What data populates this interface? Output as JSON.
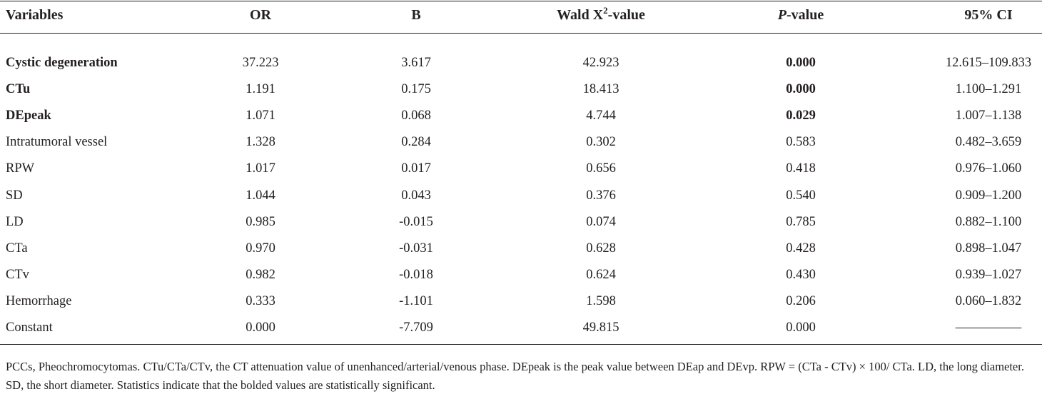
{
  "table": {
    "header": [
      [
        {
          "text": "Variables"
        }
      ],
      [
        {
          "text": "OR"
        }
      ],
      [
        {
          "text": "B"
        }
      ],
      [
        {
          "text": "Wald X"
        },
        {
          "text": "2",
          "sup": true
        },
        {
          "text": "-value"
        }
      ],
      [
        {
          "text": "P",
          "italic": true
        },
        {
          "text": "-value"
        }
      ],
      [
        {
          "text": "95% CI"
        }
      ]
    ],
    "bold_columns": [
      0,
      4
    ],
    "rows": [
      {
        "bold": true,
        "cells": [
          "Cystic degeneration",
          "37.223",
          "3.617",
          "42.923",
          "0.000",
          "12.615–109.833"
        ]
      },
      {
        "bold": true,
        "cells": [
          "CTu",
          "1.191",
          "0.175",
          "18.413",
          "0.000",
          "1.100–1.291"
        ]
      },
      {
        "bold": true,
        "cells": [
          "DEpeak",
          "1.071",
          "0.068",
          "4.744",
          "0.029",
          "1.007–1.138"
        ]
      },
      {
        "bold": false,
        "cells": [
          "Intratumoral vessel",
          "1.328",
          "0.284",
          "0.302",
          "0.583",
          "0.482–3.659"
        ]
      },
      {
        "bold": false,
        "cells": [
          "RPW",
          "1.017",
          "0.017",
          "0.656",
          "0.418",
          "0.976–1.060"
        ]
      },
      {
        "bold": false,
        "cells": [
          "SD",
          "1.044",
          "0.043",
          "0.376",
          "0.540",
          "0.909–1.200"
        ]
      },
      {
        "bold": false,
        "cells": [
          "LD",
          "0.985",
          "-0.015",
          "0.074",
          "0.785",
          "0.882–1.100"
        ]
      },
      {
        "bold": false,
        "cells": [
          "CTa",
          "0.970",
          "-0.031",
          "0.628",
          "0.428",
          "0.898–1.047"
        ]
      },
      {
        "bold": false,
        "cells": [
          "CTv",
          "0.982",
          "-0.018",
          "0.624",
          "0.430",
          "0.939–1.027"
        ]
      },
      {
        "bold": false,
        "cells": [
          "Hemorrhage",
          "0.333",
          "-1.101",
          "1.598",
          "0.206",
          "0.060–1.832"
        ]
      },
      {
        "bold": false,
        "cells": [
          "Constant",
          "0.000",
          "-7.709",
          "49.815",
          "0.000",
          "—————"
        ]
      }
    ]
  },
  "footnote": "PCCs, Pheochromocytomas. CTu/CTa/CTv, the CT attenuation value of unenhanced/arterial/venous phase. DEpeak is the peak value between DEap and DEvp. RPW = (CTa - CTv) × 100/ CTa. LD, the long diameter. SD, the short diameter. Statistics indicate that the bolded values are statistically significant."
}
